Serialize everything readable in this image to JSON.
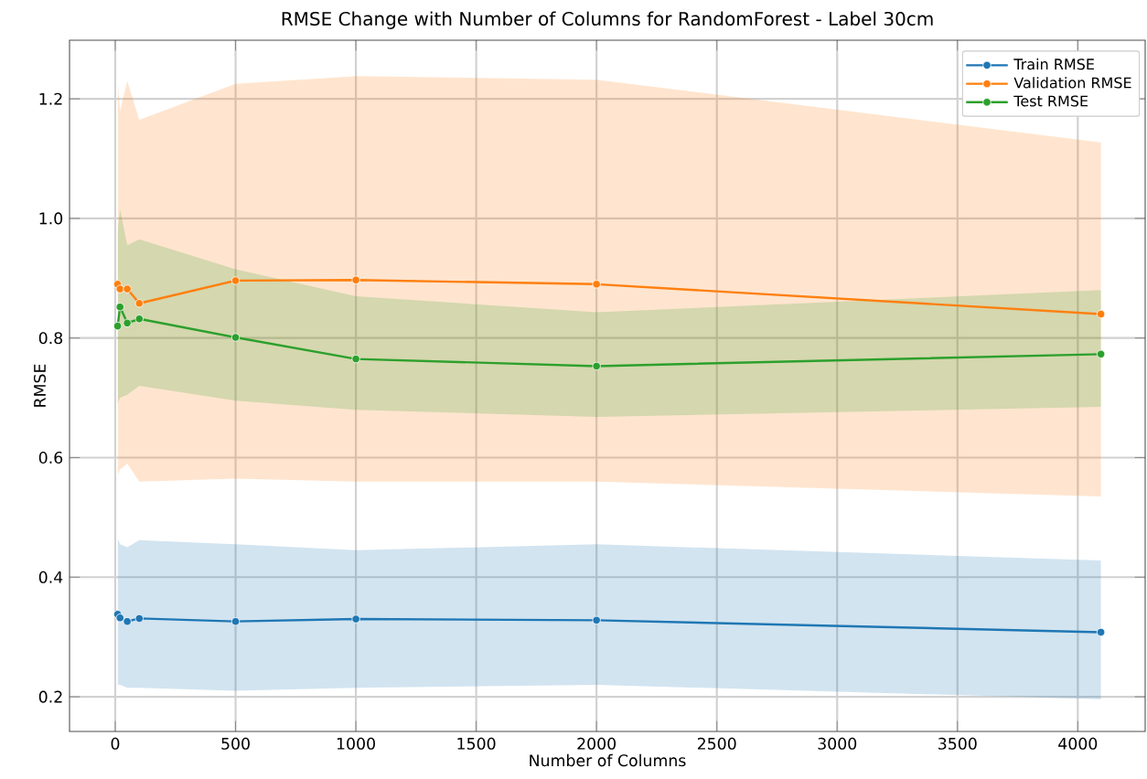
{
  "chart_data": {
    "type": "line",
    "title": "RMSE Change with Number of Columns for RandomForest - Label 30cm",
    "xlabel": "Number of Columns",
    "ylabel": "RMSE",
    "x": [
      10,
      20,
      50,
      100,
      500,
      1000,
      2000,
      4096
    ],
    "series": [
      {
        "name": "Train RMSE",
        "color": "#1f77b4",
        "values": [
          0.338,
          0.332,
          0.326,
          0.331,
          0.326,
          0.33,
          0.328,
          0.308
        ],
        "lower": [
          0.22,
          0.22,
          0.215,
          0.215,
          0.21,
          0.215,
          0.22,
          0.196
        ],
        "upper": [
          0.465,
          0.455,
          0.45,
          0.462,
          0.455,
          0.445,
          0.455,
          0.428
        ]
      },
      {
        "name": "Validation RMSE",
        "color": "#ff7f0e",
        "values": [
          0.89,
          0.882,
          0.882,
          0.858,
          0.896,
          0.897,
          0.89,
          0.84
        ],
        "lower": [
          0.57,
          0.58,
          0.59,
          0.56,
          0.565,
          0.56,
          0.56,
          0.535
        ],
        "upper": [
          1.23,
          1.18,
          1.23,
          1.165,
          1.225,
          1.238,
          1.232,
          1.127
        ]
      },
      {
        "name": "Test RMSE",
        "color": "#2ca02c",
        "values": [
          0.82,
          0.852,
          0.825,
          0.832,
          0.801,
          0.765,
          0.753,
          0.773
        ],
        "lower": [
          0.69,
          0.7,
          0.705,
          0.72,
          0.695,
          0.68,
          0.668,
          0.685
        ],
        "upper": [
          0.98,
          1.015,
          0.955,
          0.965,
          0.915,
          0.87,
          0.843,
          0.88
        ]
      }
    ],
    "xlim": [
      -190,
      4280
    ],
    "ylim": [
      0.142,
      1.298
    ],
    "xticks": [
      0,
      500,
      1000,
      1500,
      2000,
      2500,
      3000,
      3500,
      4000
    ],
    "yticks": [
      0.2,
      0.4,
      0.6,
      0.8,
      {
        "value": 1.0,
        "label": "1.0"
      },
      1.2
    ],
    "grid": true,
    "legend": "top right",
    "marker": "circle",
    "line_style": "solid"
  }
}
